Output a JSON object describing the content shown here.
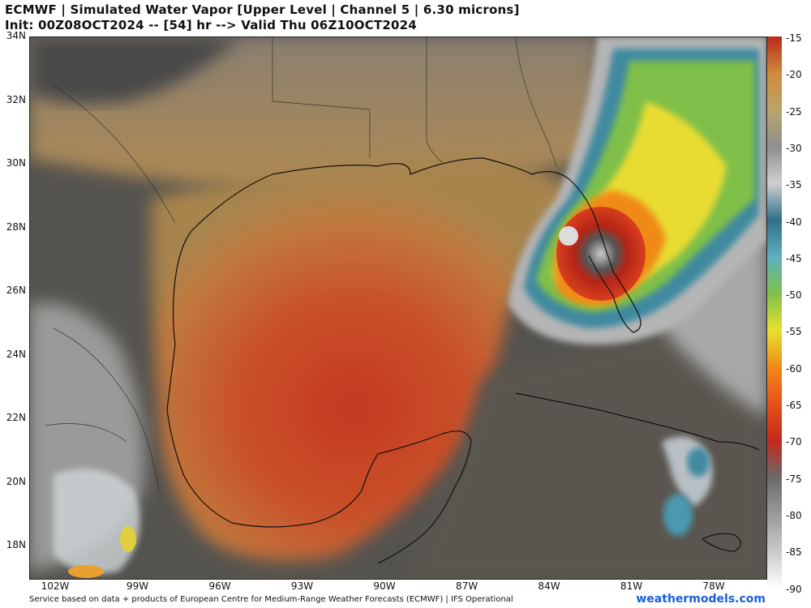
{
  "header": {
    "title": "ECMWF | Simulated Water Vapor [Upper Level | Channel 5 | 6.30 microns]",
    "subtitle": "Init: 00Z08OCT2024 -- [54] hr --> Valid Thu 06Z10OCT2024"
  },
  "map": {
    "lat_labels": [
      "34N",
      "32N",
      "30N",
      "28N",
      "26N",
      "24N",
      "22N",
      "20N",
      "18N"
    ],
    "lon_labels": [
      "102W",
      "99W",
      "96W",
      "93W",
      "90W",
      "87W",
      "84W",
      "81W",
      "78W"
    ]
  },
  "colorbar": {
    "labels": [
      "-15",
      "-20",
      "-25",
      "-30",
      "-35",
      "-40",
      "-45",
      "-50",
      "-55",
      "-60",
      "-65",
      "-70",
      "-75",
      "-80",
      "-85",
      "-90"
    ],
    "colors": [
      "#b82a1c",
      "#d08a3a",
      "#b9a46a",
      "#8f8f8f",
      "#cfcfcf",
      "#2f6f8a",
      "#5fb0c0",
      "#7fc04a",
      "#e8e030",
      "#f08a18",
      "#e8501a",
      "#c4281a",
      "#6a6a6a",
      "#9a9a9a",
      "#c8c8c8",
      "#ffffff"
    ]
  },
  "footer": {
    "credit": "Service based on data + products of European Centre for Medium-Range Weather Forecasts (ECMWF) | IFS Operational",
    "brand": "weathermodels.com"
  }
}
